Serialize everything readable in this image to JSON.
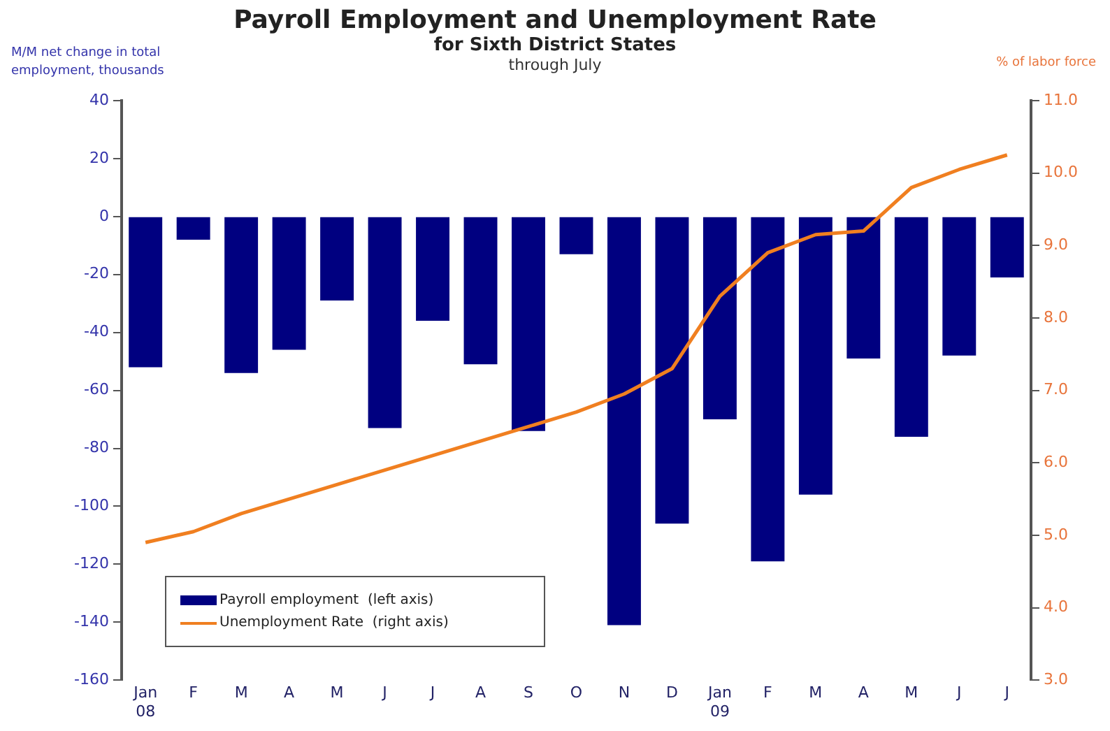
{
  "chart_data": {
    "type": "bar",
    "title": "Payroll Employment and Unemployment Rate",
    "subtitle": "for Sixth District States",
    "annotations": [
      "through July"
    ],
    "ylabel": "M/M net change in total employment, thousands",
    "y2label": "% of labor force",
    "categories": [
      "Jan 08",
      "F",
      "M",
      "A",
      "M",
      "J",
      "J",
      "A",
      "S",
      "O",
      "N",
      "D",
      "Jan 09",
      "F",
      "M",
      "A",
      "M",
      "J",
      "J"
    ],
    "series": [
      {
        "name": "Payroll employment  (left axis)",
        "color": "#000080",
        "values": [
          -52,
          -8,
          -54,
          -46,
          -29,
          -73,
          -36,
          -51,
          -74,
          -13,
          -141,
          -106,
          -70,
          -119,
          -96,
          -49,
          -76,
          -48,
          -21
        ]
      },
      {
        "name": "Unemployment Rate  (right axis)",
        "type": "line",
        "axis": "y2",
        "color": "#f07f20",
        "values": [
          4.9,
          5.05,
          5.3,
          5.5,
          5.7,
          5.9,
          6.1,
          6.3,
          6.5,
          6.7,
          6.95,
          7.3,
          8.3,
          8.9,
          9.15,
          9.2,
          9.8,
          10.05,
          10.25
        ]
      }
    ],
    "ylim": [
      -160,
      40
    ],
    "yticks": [
      -160,
      -140,
      -120,
      -100,
      -80,
      -60,
      -40,
      -20,
      0,
      20,
      40
    ],
    "y2lim": [
      3,
      11
    ],
    "y2ticks": [
      {
        "value": 3,
        "label": "3.0"
      },
      {
        "value": 4,
        "label": "4.0"
      },
      {
        "value": 5,
        "label": "5.0"
      },
      {
        "value": 6,
        "label": "6.0"
      },
      {
        "value": 7,
        "label": "7.0"
      },
      {
        "value": 8,
        "label": "8.0"
      },
      {
        "value": 9,
        "label": "9.0"
      },
      {
        "value": 10,
        "label": "10.0"
      },
      {
        "value": 11,
        "label": "11.0"
      }
    ],
    "legend": "bottom left",
    "grid": false,
    "marker": "none"
  }
}
